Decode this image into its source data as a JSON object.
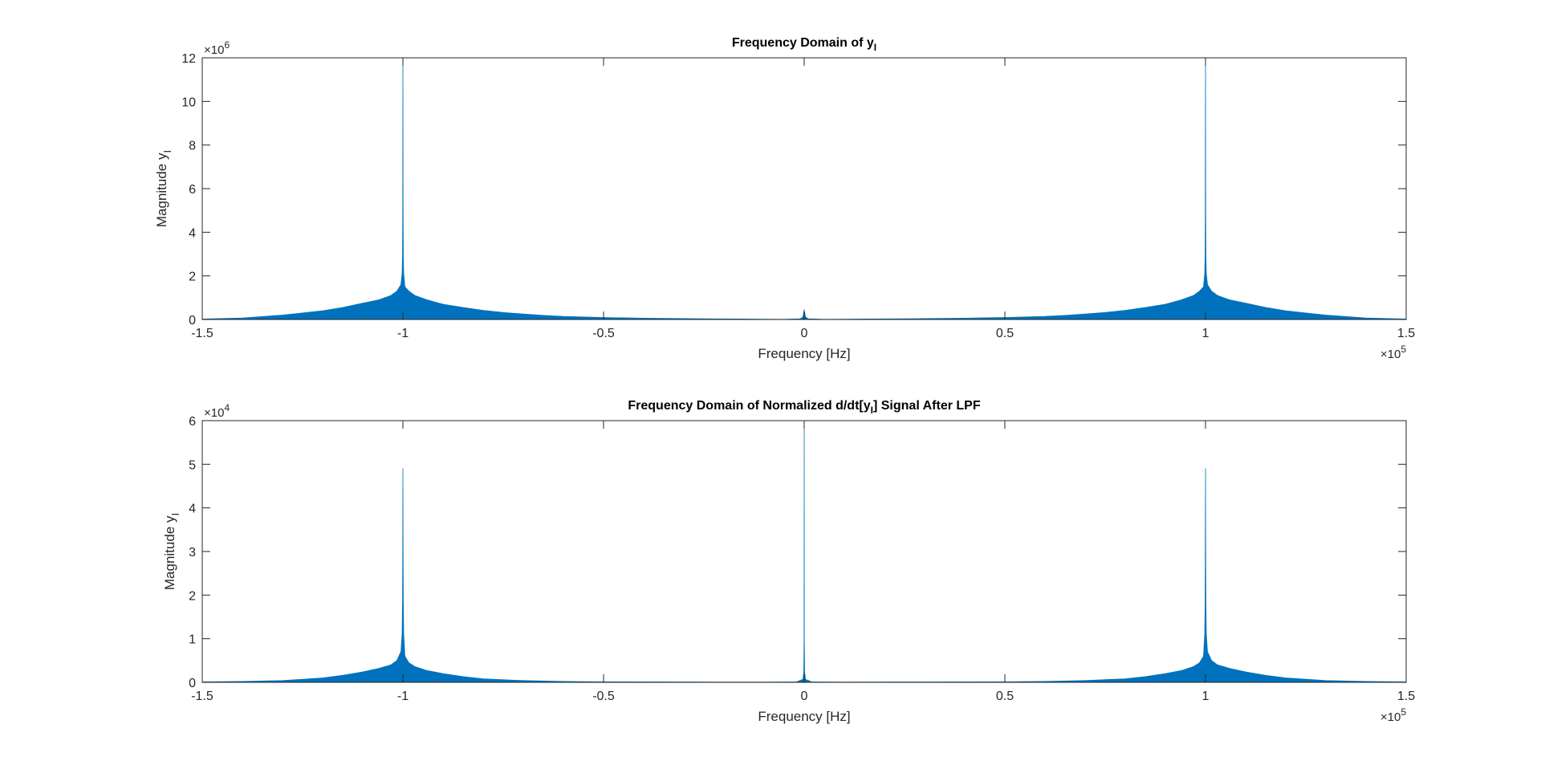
{
  "chart_data": [
    {
      "type": "line",
      "title": "Frequency Domain of y",
      "title_subscript": "I",
      "xlabel": "Frequency [Hz]",
      "ylabel": "Magnitude y",
      "ylabel_subscript": "I",
      "xlim": [
        -150000,
        150000
      ],
      "ylim": [
        0,
        12000000
      ],
      "x_multiplier": "10",
      "x_multiplier_exp": "5",
      "y_multiplier": "10",
      "y_multiplier_exp": "6",
      "xticks": [
        -150000,
        -100000,
        -50000,
        0,
        50000,
        100000,
        150000
      ],
      "xtick_labels": [
        "-1.5",
        "-1",
        "-0.5",
        "0",
        "0.5",
        "1",
        "1.5"
      ],
      "yticks": [
        0,
        2000000,
        4000000,
        6000000,
        8000000,
        10000000,
        12000000
      ],
      "ytick_labels": [
        "0",
        "2",
        "4",
        "6",
        "8",
        "10",
        "12"
      ],
      "grid": false,
      "color": "#0072bd",
      "series": [
        {
          "x": [
            -150000,
            -140000,
            -130000,
            -125000,
            -120000,
            -115000,
            -110000,
            -106000,
            -103000,
            -101500,
            -100500,
            -100200,
            -100100,
            -100050,
            -100000,
            -99950,
            -99900,
            -99800,
            -99500,
            -98500,
            -97000,
            -94000,
            -90000,
            -85000,
            -80000,
            -75000,
            -70000,
            -65000,
            -60000,
            -50000,
            -45000,
            -40000,
            -35000,
            -30000,
            -25000,
            -20000,
            -15000,
            -10000,
            -5000,
            -1000,
            -300,
            0,
            300,
            1000,
            5000,
            10000,
            15000,
            20000,
            25000,
            30000,
            35000,
            40000,
            45000,
            50000,
            60000,
            65000,
            70000,
            75000,
            80000,
            85000,
            90000,
            94000,
            97000,
            98500,
            99500,
            99800,
            99900,
            99950,
            100000,
            100050,
            100100,
            100200,
            100500,
            101500,
            103000,
            106000,
            110000,
            115000,
            120000,
            125000,
            130000,
            140000,
            150000
          ],
          "y": [
            20000,
            70000,
            200000,
            300000,
            400000,
            550000,
            750000,
            900000,
            1100000,
            1300000,
            1600000,
            2100000,
            2900000,
            5000000,
            12000000,
            5000000,
            2900000,
            2100000,
            1500000,
            1300000,
            1100000,
            900000,
            700000,
            550000,
            420000,
            320000,
            250000,
            190000,
            140000,
            90000,
            75000,
            60000,
            50000,
            40000,
            32000,
            25000,
            20000,
            15000,
            10000,
            30000,
            120000,
            450000,
            120000,
            30000,
            10000,
            15000,
            20000,
            25000,
            32000,
            40000,
            50000,
            60000,
            75000,
            90000,
            140000,
            190000,
            250000,
            320000,
            420000,
            550000,
            700000,
            900000,
            1100000,
            1300000,
            1500000,
            2100000,
            2900000,
            5000000,
            12000000,
            5000000,
            2900000,
            2100000,
            1600000,
            1300000,
            1100000,
            900000,
            750000,
            550000,
            400000,
            300000,
            200000,
            70000,
            20000
          ]
        }
      ]
    },
    {
      "type": "line",
      "title": "Frequency Domain of Normalized d/dt[y",
      "title_subscript": "I",
      "title_suffix": "] Signal After LPF",
      "xlabel": "Frequency [Hz]",
      "ylabel": "Magnitude y",
      "ylabel_subscript": "I",
      "xlim": [
        -150000,
        150000
      ],
      "ylim": [
        0,
        60000
      ],
      "x_multiplier": "10",
      "x_multiplier_exp": "5",
      "y_multiplier": "10",
      "y_multiplier_exp": "4",
      "xticks": [
        -150000,
        -100000,
        -50000,
        0,
        50000,
        100000,
        150000
      ],
      "xtick_labels": [
        "-1.5",
        "-1",
        "-0.5",
        "0",
        "0.5",
        "1",
        "1.5"
      ],
      "yticks": [
        0,
        10000,
        20000,
        30000,
        40000,
        50000,
        60000
      ],
      "ytick_labels": [
        "0",
        "1",
        "2",
        "3",
        "4",
        "5",
        "6"
      ],
      "grid": false,
      "color": "#0072bd",
      "series": [
        {
          "x": [
            -150000,
            -140000,
            -130000,
            -120000,
            -115000,
            -110000,
            -106000,
            -103000,
            -101500,
            -100500,
            -100200,
            -100100,
            -100050,
            -100000,
            -99950,
            -99900,
            -99800,
            -99500,
            -98500,
            -97000,
            -94000,
            -90000,
            -85000,
            -80000,
            -70000,
            -60000,
            -50000,
            -30000,
            -10000,
            -2000,
            -300,
            -100,
            -30,
            0,
            30,
            100,
            300,
            2000,
            10000,
            30000,
            50000,
            60000,
            70000,
            80000,
            85000,
            90000,
            94000,
            97000,
            98500,
            99500,
            99800,
            99900,
            99950,
            100000,
            100050,
            100100,
            100200,
            100500,
            101500,
            103000,
            106000,
            110000,
            115000,
            120000,
            130000,
            140000,
            150000
          ],
          "y": [
            100,
            200,
            400,
            1000,
            1600,
            2400,
            3200,
            4000,
            5000,
            7000,
            11000,
            18000,
            30000,
            49000,
            30000,
            18000,
            11000,
            6000,
            4500,
            3600,
            2700,
            2000,
            1300,
            800,
            400,
            200,
            120,
            80,
            60,
            80,
            700,
            2500,
            10000,
            60000,
            10000,
            2500,
            700,
            80,
            60,
            80,
            120,
            200,
            400,
            800,
            1300,
            2000,
            2700,
            3600,
            4500,
            6000,
            11000,
            18000,
            30000,
            49000,
            30000,
            18000,
            11000,
            7000,
            5000,
            4000,
            3200,
            2400,
            1600,
            1000,
            400,
            200,
            100
          ]
        }
      ]
    }
  ]
}
